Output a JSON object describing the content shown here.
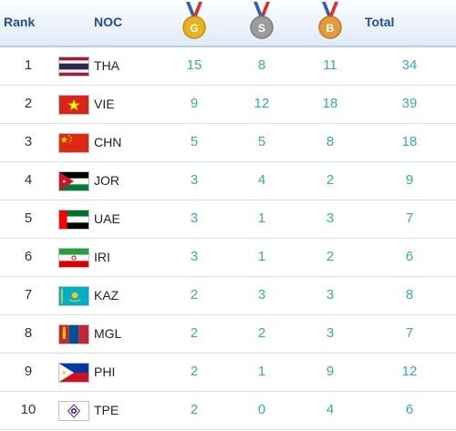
{
  "header": {
    "rank": "Rank",
    "noc": "NOC",
    "gold": "G",
    "silver": "S",
    "bronze": "B",
    "total": "Total"
  },
  "colors": {
    "header_text": "#1f4e96",
    "number_text": "#3aa9a9",
    "gold": "#e8b321",
    "silver": "#9c9c9c",
    "bronze": "#e39a3e"
  },
  "rows": [
    {
      "rank": "1",
      "noc": "THA",
      "flag": "thailand-flag-icon",
      "gold": "15",
      "silver": "8",
      "bronze": "11",
      "total": "34"
    },
    {
      "rank": "2",
      "noc": "VIE",
      "flag": "vietnam-flag-icon",
      "gold": "9",
      "silver": "12",
      "bronze": "18",
      "total": "39"
    },
    {
      "rank": "3",
      "noc": "CHN",
      "flag": "china-flag-icon",
      "gold": "5",
      "silver": "5",
      "bronze": "8",
      "total": "18"
    },
    {
      "rank": "4",
      "noc": "JOR",
      "flag": "jordan-flag-icon",
      "gold": "3",
      "silver": "4",
      "bronze": "2",
      "total": "9"
    },
    {
      "rank": "5",
      "noc": "UAE",
      "flag": "uae-flag-icon",
      "gold": "3",
      "silver": "1",
      "bronze": "3",
      "total": "7"
    },
    {
      "rank": "6",
      "noc": "IRI",
      "flag": "iran-flag-icon",
      "gold": "3",
      "silver": "1",
      "bronze": "2",
      "total": "6"
    },
    {
      "rank": "7",
      "noc": "KAZ",
      "flag": "kazakhstan-flag-icon",
      "gold": "2",
      "silver": "3",
      "bronze": "3",
      "total": "8"
    },
    {
      "rank": "8",
      "noc": "MGL",
      "flag": "mongolia-flag-icon",
      "gold": "2",
      "silver": "2",
      "bronze": "3",
      "total": "7"
    },
    {
      "rank": "9",
      "noc": "PHI",
      "flag": "philippines-flag-icon",
      "gold": "2",
      "silver": "1",
      "bronze": "9",
      "total": "12"
    },
    {
      "rank": "10",
      "noc": "TPE",
      "flag": "chinese-taipei-flag-icon",
      "gold": "2",
      "silver": "0",
      "bronze": "4",
      "total": "6"
    }
  ]
}
